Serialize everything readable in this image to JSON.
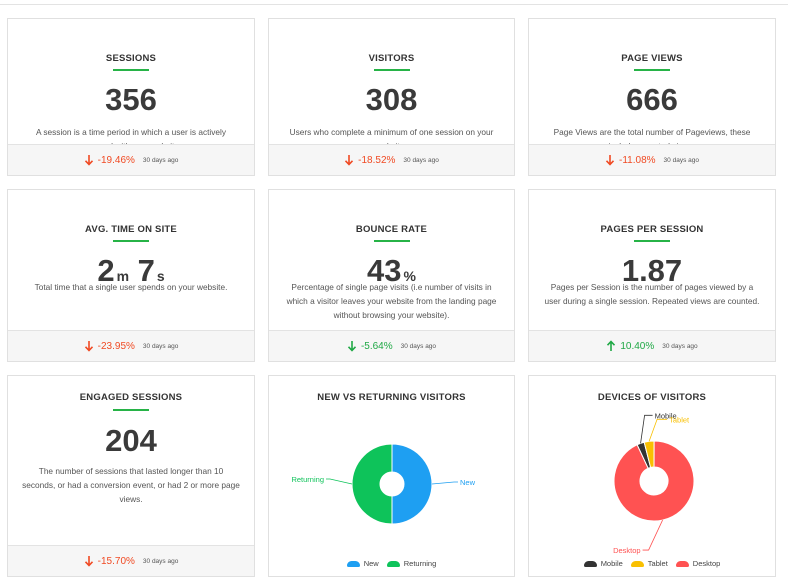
{
  "cards": [
    {
      "title": "SESSIONS",
      "value": "356",
      "description": "A session is a time period in which a user is actively engaged with your website.",
      "change": "-19.46%",
      "direction": "down",
      "period": "30 days ago"
    },
    {
      "title": "VISITORS",
      "value": "308",
      "description": "Users who complete a minimum of one session on your website.",
      "change": "-18.52%",
      "direction": "down",
      "period": "30 days ago"
    },
    {
      "title": "PAGE VIEWS",
      "value": "666",
      "description": "Page Views are the total number of Pageviews, these include repeated views.",
      "change": "-11.08%",
      "direction": "down",
      "period": "30 days ago"
    },
    {
      "title": "AVG. TIME ON SITE",
      "value_min": "2",
      "unit_min": "m",
      "value_sec": "7",
      "unit_sec": "s",
      "description": "Total time that a single user spends on your website.",
      "change": "-23.95%",
      "direction": "down",
      "period": "30 days ago"
    },
    {
      "title": "BOUNCE RATE",
      "value": "43",
      "unit": "%",
      "description": "Percentage of single page visits (i.e number of visits in which a visitor leaves your website from the landing page without browsing your website).",
      "change": "-5.64%",
      "direction": "down",
      "period": "30 days ago"
    },
    {
      "title": "PAGES PER SESSION",
      "value": "1.87",
      "description": "Pages per Session is the number of pages viewed by a user during a single session. Repeated views are counted.",
      "change": "10.40%",
      "direction": "up",
      "period": "30 days ago"
    },
    {
      "title": "ENGAGED SESSIONS",
      "value": "204",
      "description": "The number of sessions that lasted longer than 10 seconds, or had a conversion event, or had 2 or more page views.",
      "change": "-15.70%",
      "direction": "down",
      "period": "30 days ago"
    }
  ],
  "colors": {
    "down": "#f04a23",
    "up": "#1fa845",
    "accent": "#27b347"
  },
  "chart_data": [
    {
      "type": "pie",
      "title": "NEW VS RETURNING VISITORS",
      "categories": [
        "New",
        "Returning"
      ],
      "values": [
        50,
        50
      ],
      "colors": [
        "#1e9ff2",
        "#0ec35a"
      ],
      "legend": "bottom"
    },
    {
      "type": "pie",
      "title": "DEVICES OF VISITORS",
      "categories": [
        "Mobile",
        "Tablet",
        "Desktop"
      ],
      "values": [
        3,
        4,
        93
      ],
      "colors": [
        "#333333",
        "#f9c002",
        "#ff5252"
      ],
      "legend": "bottom"
    }
  ]
}
